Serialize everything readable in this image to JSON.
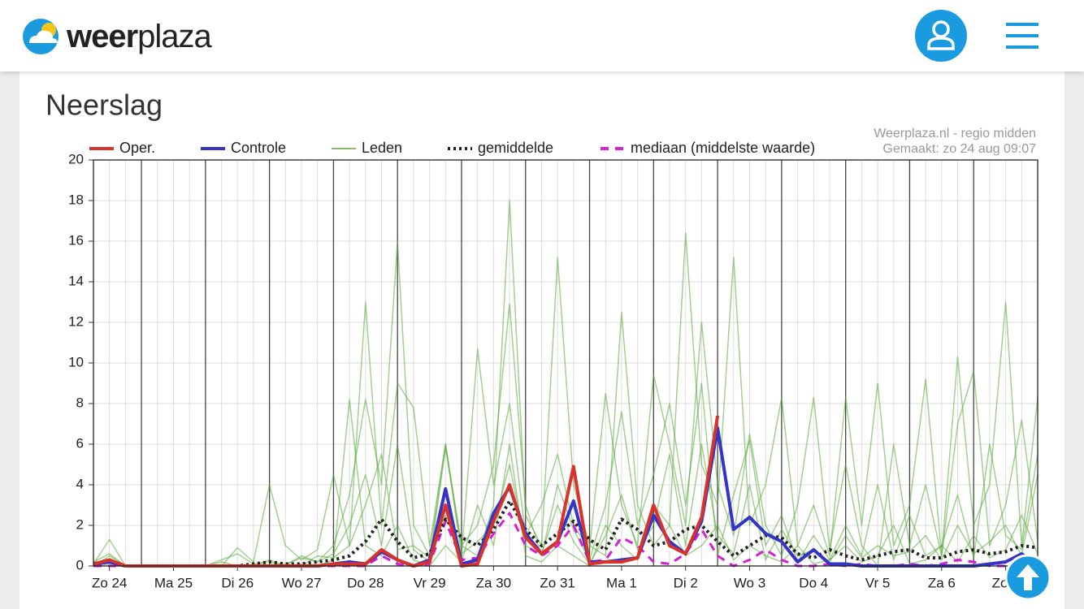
{
  "header": {
    "logo_bold": "weer",
    "logo_light": "plaza"
  },
  "section_title": "Neerslag",
  "chart_data": {
    "type": "line",
    "source_note": [
      "Weerplaza.nl - regio midden",
      "Gemaakt: zo 24 aug 09:07"
    ],
    "x": [
      6,
      12,
      18,
      24,
      30,
      36,
      42,
      48,
      54,
      60,
      66,
      72,
      78,
      84,
      90,
      96,
      102,
      108,
      114,
      120,
      126,
      132,
      138,
      144,
      150,
      156,
      162,
      168,
      174,
      180,
      186,
      192,
      198,
      204,
      210,
      216,
      222,
      228,
      234,
      240,
      246,
      252,
      258,
      264,
      270,
      276,
      282,
      288,
      294,
      300,
      306,
      312,
      318,
      324,
      330,
      336,
      342,
      348,
      354,
      360
    ],
    "xlim": [
      6,
      360
    ],
    "xticks": [
      {
        "value": 12,
        "label": "Zo 24"
      },
      {
        "value": 36,
        "label": "Ma 25"
      },
      {
        "value": 60,
        "label": "Di 26"
      },
      {
        "value": 84,
        "label": "Wo 27"
      },
      {
        "value": 108,
        "label": "Do 28"
      },
      {
        "value": 132,
        "label": "Vr 29"
      },
      {
        "value": 156,
        "label": "Za 30"
      },
      {
        "value": 180,
        "label": "Zo 31"
      },
      {
        "value": 204,
        "label": "Ma 1"
      },
      {
        "value": 228,
        "label": "Di 2"
      },
      {
        "value": 252,
        "label": "Wo 3"
      },
      {
        "value": 276,
        "label": "Do 4"
      },
      {
        "value": 300,
        "label": "Vr 5"
      },
      {
        "value": 324,
        "label": "Za 6"
      },
      {
        "value": 348,
        "label": "Zo 7"
      }
    ],
    "xgrid_major": [
      24,
      48,
      72,
      96,
      120,
      144,
      168,
      192,
      216,
      240,
      264,
      288,
      312,
      336
    ],
    "ylim": [
      0,
      20
    ],
    "yticks": [
      0,
      2,
      4,
      6,
      8,
      10,
      12,
      14,
      16,
      18,
      20
    ],
    "grid": true,
    "series": [
      {
        "name": "Oper.",
        "color": "#d8322b",
        "width": 4,
        "values": [
          0.1,
          0.3,
          0.0,
          0,
          0,
          0,
          0,
          0,
          0,
          0,
          0,
          0,
          0,
          0,
          0,
          0.1,
          0.1,
          0.1,
          0.8,
          0.3,
          0.0,
          0.2,
          3.0,
          0.0,
          0.1,
          2.2,
          4.0,
          1.4,
          0.6,
          1.2,
          4.9,
          0.1,
          0.2,
          0.2,
          0.4,
          3.0,
          1.0,
          0.6,
          2.4,
          7.4,
          null,
          null,
          null,
          null,
          null,
          null,
          null,
          null,
          null,
          null,
          null,
          null,
          null,
          null,
          null,
          null,
          null,
          null,
          null,
          null
        ]
      },
      {
        "name": "Controle",
        "color": "#3434c8",
        "width": 4,
        "values": [
          0.1,
          0.2,
          0,
          0,
          0,
          0,
          0,
          0,
          0,
          0,
          0,
          0,
          0,
          0,
          0,
          0.1,
          0.2,
          0.1,
          0.7,
          0.3,
          0.0,
          0.3,
          3.8,
          0.1,
          0.3,
          2.6,
          3.9,
          1.6,
          0.6,
          1.2,
          3.2,
          0.2,
          0.2,
          0.3,
          0.4,
          2.5,
          1.2,
          0.6,
          2.2,
          6.8,
          1.8,
          2.4,
          1.6,
          1.2,
          0.2,
          0.8,
          0.1,
          0.1,
          0,
          0,
          0,
          0,
          0,
          0,
          0,
          0,
          0.1,
          0.2,
          0.6,
          0
        ]
      },
      {
        "name": "Leden",
        "color": "#5aa83a",
        "width": 1.5,
        "members": [
          [
            0,
            0.3,
            0,
            0,
            0,
            0,
            0,
            0,
            0,
            0,
            0,
            0,
            0.1,
            0.4,
            0.2,
            1.0,
            3.5,
            8.2,
            4.0,
            16.0,
            2.0,
            0.5,
            6.0,
            1.0,
            0.5,
            3.0,
            18.0,
            2.5,
            1.0,
            15.2,
            4.0,
            1.0,
            0.5,
            12.5,
            3.0,
            1.0,
            2.0,
            16.4,
            5.0,
            3.0,
            15.2,
            2.0,
            4.0,
            8.3,
            1.0,
            3.0,
            0.5,
            8.3,
            2.0,
            9.0,
            1.0,
            3.0,
            9.2,
            0.5,
            10.3,
            2.0,
            4.0,
            13.0,
            1.0,
            8.3
          ],
          [
            0.1,
            1.3,
            0,
            0,
            0,
            0,
            0,
            0,
            0,
            0.9,
            0.2,
            4.0,
            1.0,
            0.3,
            0.8,
            4.5,
            1.0,
            13.0,
            2.0,
            9.0,
            7.8,
            1.0,
            6.0,
            0.5,
            10.7,
            4.0,
            8.0,
            1.5,
            3.0,
            5.5,
            2.0,
            0.8,
            8.5,
            3.0,
            1.0,
            9.4,
            6.0,
            2.0,
            12.0,
            4.0,
            1.5,
            6.5,
            2.0,
            0.5,
            3.0,
            8.3,
            0.8,
            5.0,
            1.0,
            0,
            6.0,
            1.0,
            4.0,
            0.5,
            7.0,
            9.6,
            1.0,
            3.0,
            7.2,
            1.2
          ],
          [
            0,
            0.5,
            0,
            0,
            0,
            0,
            0,
            0,
            0.2,
            0,
            0,
            0.3,
            0,
            0.5,
            0.2,
            0.6,
            2.0,
            4.5,
            1.0,
            6.0,
            0.8,
            0.2,
            5.8,
            1.0,
            2.0,
            5.0,
            12.9,
            3.0,
            0.5,
            4.0,
            1.8,
            0.3,
            3.0,
            7.6,
            2.0,
            4.5,
            8.0,
            3.0,
            9.0,
            0.5,
            3.5,
            6.2,
            1.0,
            2.5,
            0.2,
            1.5,
            0.3,
            2.0,
            0.5,
            4.0,
            0.3,
            2.5,
            0.5,
            1.0,
            3.5,
            0.4,
            6.0,
            1.5,
            0.8,
            5.5
          ],
          [
            0,
            0.1,
            0,
            0,
            0,
            0,
            0,
            0,
            0,
            0,
            0,
            0,
            0,
            0.1,
            0,
            0.3,
            8.2,
            1.0,
            0.5,
            2.0,
            0.3,
            0,
            1.0,
            0.2,
            3.0,
            1.0,
            6.0,
            0.5,
            0.2,
            1.0,
            0.5,
            0,
            2.0,
            1.0,
            0.3,
            3.0,
            2.0,
            0.5,
            1.0,
            2.0,
            0.3,
            1.0,
            0.5,
            0.2,
            1.0,
            0.1,
            0.3,
            1.0,
            0.2,
            0.5,
            2.0,
            0.1,
            0.3,
            1.0,
            0.2,
            1.5,
            0.4,
            0.8,
            2.5,
            0.6
          ],
          [
            0.2,
            0.6,
            0,
            0,
            0,
            0,
            0,
            0,
            0.3,
            0.6,
            0.1,
            0.2,
            0,
            0,
            0.5,
            0.4,
            1.0,
            3.0,
            5.5,
            0.8,
            1.0,
            0.4,
            2.5,
            0.6,
            1.2,
            2.0,
            5.0,
            1.0,
            0.6,
            3.0,
            1.2,
            0.1,
            1.5,
            3.5,
            0.8,
            2.0,
            5.5,
            1.0,
            6.0,
            1.5,
            0.6,
            4.0,
            0.3,
            1.8,
            0.5,
            0.8,
            0.2,
            1.5,
            0.4,
            1.0,
            0.5,
            0.7,
            1.5,
            0.3,
            2.0,
            0.6,
            1.2,
            2.0,
            0.5,
            4.5
          ]
        ]
      },
      {
        "name": "gemiddelde",
        "color": "#222222",
        "width": 4,
        "dash": "dotted",
        "values": [
          0.1,
          0.2,
          0,
          0,
          0,
          0,
          0,
          0,
          0,
          0,
          0.1,
          0.2,
          0.1,
          0.1,
          0.2,
          0.3,
          0.5,
          1.2,
          2.3,
          1.2,
          0.4,
          0.6,
          2.3,
          1.4,
          1.0,
          1.8,
          3.2,
          1.8,
          1.0,
          1.6,
          2.2,
          1.3,
          0.8,
          2.3,
          1.8,
          1.0,
          1.2,
          1.8,
          2.0,
          1.2,
          0.5,
          1.0,
          1.5,
          1.4,
          0.6,
          0.4,
          0.8,
          0.5,
          0.3,
          0.5,
          0.7,
          0.8,
          0.4,
          0.4,
          0.7,
          0.8,
          0.6,
          0.7,
          1.0,
          0.9
        ]
      },
      {
        "name": "mediaan (middelste waarde)",
        "color": "#d41fd4",
        "width": 3,
        "dash": "dashed",
        "values": [
          0,
          0,
          0,
          0,
          0,
          0,
          0,
          0,
          0,
          0,
          0,
          0,
          0,
          0,
          0,
          0,
          0,
          0,
          0.5,
          0.1,
          0,
          0.1,
          2.2,
          0.3,
          0.4,
          1.6,
          2.6,
          1.0,
          0.5,
          1.0,
          2.0,
          0.2,
          0.3,
          1.4,
          1.0,
          0.2,
          0.1,
          0.6,
          1.8,
          0.5,
          0.0,
          0.3,
          0.8,
          0.3,
          0,
          0,
          0.1,
          0,
          0.1,
          0,
          0,
          0.1,
          0,
          0.1,
          0.3,
          0.2,
          0,
          0,
          0.2,
          0.1
        ]
      }
    ]
  }
}
